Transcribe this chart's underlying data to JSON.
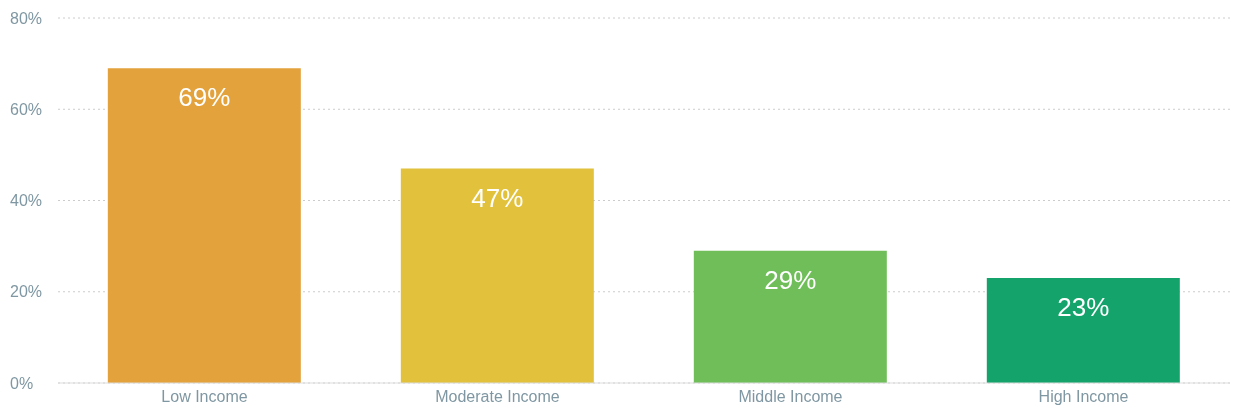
{
  "chart_data": {
    "type": "bar",
    "categories": [
      "Low Income",
      "Moderate Income",
      "Middle Income",
      "High Income"
    ],
    "values": [
      69,
      47,
      29,
      23
    ],
    "colors": [
      "#e3a23b",
      "#e2c23c",
      "#6fbe5a",
      "#14a36a"
    ],
    "value_labels": [
      "69%",
      "47%",
      "29%",
      "23%"
    ],
    "ylim": [
      0,
      80
    ],
    "yticks": [
      {
        "value": 0,
        "label": "0%"
      },
      {
        "value": 20,
        "label": "20%"
      },
      {
        "value": 40,
        "label": "40%"
      },
      {
        "value": 60,
        "label": "60%"
      },
      {
        "value": 80,
        "label": "80%"
      }
    ],
    "grid": "y",
    "legend": false
  }
}
